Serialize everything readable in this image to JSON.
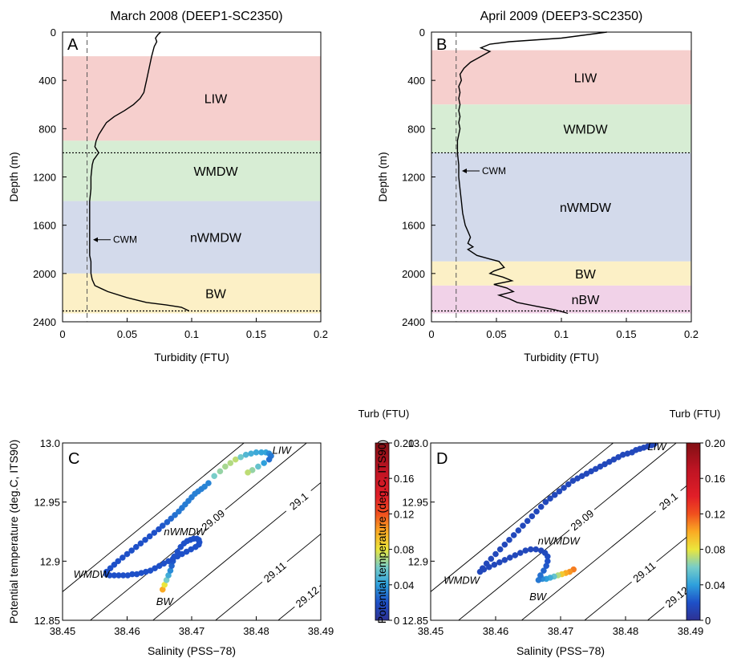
{
  "chart_data": [
    {
      "id": "A",
      "type": "line",
      "panel_label": "A",
      "title": "March 2008  (DEEP1-SC2350)",
      "xlabel": "Turbidity (FTU)",
      "ylabel": "Depth (m)",
      "xlim": [
        0,
        0.2
      ],
      "ylim": [
        2400,
        0
      ],
      "y_inverted": true,
      "xticks": [
        "0",
        "0.05",
        "0.1",
        "0.15",
        "0.2"
      ],
      "yticks": [
        "0",
        "400",
        "800",
        "1200",
        "1600",
        "2000",
        "2400"
      ],
      "bands": [
        {
          "label": "LIW",
          "from": 200,
          "to": 900,
          "color": "#f6cfcd"
        },
        {
          "label": "WMDW",
          "from": 900,
          "to": 1400,
          "color": "#d7edd4"
        },
        {
          "label": "nWMDW",
          "from": 1400,
          "to": 2000,
          "color": "#d3daeb"
        },
        {
          "label": "BW",
          "from": 2000,
          "to": 2330,
          "color": "#fcf0c6"
        }
      ],
      "hlines": [
        1000,
        2310
      ],
      "vline": 0.019,
      "annotation": "CWM",
      "annotation_depth": 1720,
      "series": [
        {
          "x": [
            0.076,
            0.074,
            0.072,
            0.073,
            0.071,
            0.07,
            0.069,
            0.068,
            0.067,
            0.066,
            0.065,
            0.064,
            0.063,
            0.06,
            0.055,
            0.048,
            0.04,
            0.034,
            0.031,
            0.028,
            0.026,
            0.025,
            0.028,
            0.026,
            0.024,
            0.023,
            0.022,
            0.022,
            0.021,
            0.021,
            0.021,
            0.021,
            0.021,
            0.021,
            0.021,
            0.021,
            0.021,
            0.021,
            0.022,
            0.022,
            0.022,
            0.023,
            0.025,
            0.035,
            0.05,
            0.065,
            0.08,
            0.092,
            0.098
          ],
          "y": [
            0,
            20,
            50,
            80,
            120,
            160,
            200,
            250,
            300,
            350,
            400,
            450,
            500,
            550,
            600,
            650,
            700,
            750,
            800,
            850,
            900,
            950,
            1000,
            1030,
            1060,
            1100,
            1200,
            1300,
            1400,
            1450,
            1500,
            1550,
            1600,
            1650,
            1700,
            1750,
            1800,
            1850,
            1900,
            1950,
            2000,
            2050,
            2100,
            2150,
            2200,
            2240,
            2260,
            2280,
            2310
          ]
        }
      ]
    },
    {
      "id": "B",
      "type": "line",
      "panel_label": "B",
      "title": "April 2009  (DEEP3-SC2350)",
      "xlabel": "Turbidity (FTU)",
      "ylabel": "Depth (m)",
      "xlim": [
        0,
        0.2
      ],
      "ylim": [
        2400,
        0
      ],
      "y_inverted": true,
      "xticks": [
        "0",
        "0.05",
        "0.1",
        "0.15",
        "0.2"
      ],
      "yticks": [
        "0",
        "400",
        "800",
        "1200",
        "1600",
        "2000",
        "2400"
      ],
      "bands": [
        {
          "label": "LIW",
          "from": 150,
          "to": 600,
          "color": "#f6cfcd"
        },
        {
          "label": "WMDW",
          "from": 600,
          "to": 1000,
          "color": "#d7edd4"
        },
        {
          "label": "nWMDW",
          "from": 1000,
          "to": 1900,
          "color": "#d3daeb"
        },
        {
          "label": "BW",
          "from": 1900,
          "to": 2100,
          "color": "#fcf0c6"
        },
        {
          "label": "nBW",
          "from": 2100,
          "to": 2330,
          "color": "#f1d2e8"
        }
      ],
      "hlines": [
        1000,
        2310
      ],
      "vline": 0.019,
      "annotation": "CWM",
      "annotation_depth": 1150,
      "series": [
        {
          "x": [
            0.135,
            0.1,
            0.06,
            0.045,
            0.038,
            0.045,
            0.04,
            0.035,
            0.03,
            0.025,
            0.022,
            0.023,
            0.021,
            0.022,
            0.021,
            0.022,
            0.021,
            0.022,
            0.021,
            0.022,
            0.021,
            0.02,
            0.02,
            0.021,
            0.021,
            0.022,
            0.023,
            0.024,
            0.026,
            0.028,
            0.03,
            0.028,
            0.032,
            0.028,
            0.035,
            0.045,
            0.052,
            0.056,
            0.048,
            0.045,
            0.055,
            0.062,
            0.048,
            0.058,
            0.063,
            0.052,
            0.06,
            0.066,
            0.08,
            0.095,
            0.105
          ],
          "y": [
            0,
            50,
            80,
            100,
            130,
            160,
            190,
            220,
            250,
            300,
            350,
            400,
            450,
            500,
            550,
            600,
            650,
            700,
            750,
            800,
            850,
            900,
            1000,
            1100,
            1200,
            1300,
            1400,
            1500,
            1600,
            1650,
            1700,
            1750,
            1780,
            1800,
            1850,
            1880,
            1900,
            1950,
            1980,
            2000,
            2030,
            2060,
            2090,
            2120,
            2150,
            2180,
            2210,
            2240,
            2270,
            2300,
            2330
          ]
        }
      ]
    },
    {
      "id": "C",
      "type": "scatter",
      "panel_label": "C",
      "xlabel": "Salinity (PSS−78)",
      "ylabel": "Potential temperature (deg.C, ITS90)",
      "xlim": [
        38.45,
        38.49
      ],
      "ylim": [
        12.85,
        13.0
      ],
      "xticks": [
        "38.45",
        "38.46",
        "38.47",
        "38.48",
        "38.49"
      ],
      "yticks": [
        "12.85",
        "12.9",
        "12.95",
        "13.0"
      ],
      "isopycnals": [
        {
          "label": "29.09",
          "value": 29.09
        },
        {
          "label": "29.1",
          "value": 29.1
        },
        {
          "label": "29.11",
          "value": 29.11
        },
        {
          "label": "29.12",
          "value": 29.12
        }
      ],
      "water_mass_labels": [
        "LIW",
        "nWMDW",
        "WMDW",
        "BW"
      ],
      "colorbar": {
        "title": "Turb (FTU)",
        "min": 0,
        "max": 0.2,
        "ticks": [
          "0",
          "0.04",
          "0.08",
          "0.12",
          "0.16",
          "0.20"
        ]
      },
      "points": {
        "s": [
          38.4655,
          38.4658,
          38.4661,
          38.4664,
          38.4667,
          38.4669,
          38.4671,
          38.4673,
          38.4678,
          38.4683,
          38.4688,
          38.4693,
          38.4698,
          38.4703,
          38.4708,
          38.4711,
          38.4712,
          38.4711,
          38.4706,
          38.4699,
          38.4692,
          38.4685,
          38.4678,
          38.4671,
          38.4664,
          38.4657,
          38.465,
          38.4643,
          38.4636,
          38.4629,
          38.4622,
          38.4615,
          38.4608,
          38.4601,
          38.4594,
          38.4587,
          38.458,
          38.4573,
          38.4568,
          38.4568,
          38.4574,
          38.458,
          38.4586,
          38.4593,
          38.46,
          38.4607,
          38.4614,
          38.4621,
          38.4628,
          38.4635,
          38.4642,
          38.4649,
          38.4655,
          38.4662,
          38.4668,
          38.4674,
          38.468,
          38.4685,
          38.469,
          38.4695,
          38.47,
          38.4705,
          38.471,
          38.4715,
          38.472,
          38.4726,
          38.4735,
          38.4744,
          38.4752,
          38.476,
          38.4768,
          38.4776,
          38.4784,
          38.4792,
          38.48,
          38.4808,
          38.4815,
          38.482,
          38.4823,
          38.482,
          38.4812,
          38.4803,
          38.4794,
          38.4787
        ],
        "t": [
          12.876,
          12.88,
          12.884,
          12.888,
          12.892,
          12.896,
          12.9,
          12.904,
          12.908,
          12.912,
          12.915,
          12.917,
          12.918,
          12.919,
          12.919,
          12.918,
          12.916,
          12.914,
          12.912,
          12.91,
          12.908,
          12.906,
          12.904,
          12.902,
          12.9,
          12.898,
          12.896,
          12.894,
          12.892,
          12.891,
          12.89,
          12.889,
          12.889,
          12.888,
          12.888,
          12.888,
          12.888,
          12.888,
          12.889,
          12.891,
          12.894,
          12.897,
          12.9,
          12.903,
          12.906,
          12.909,
          12.912,
          12.915,
          12.918,
          12.921,
          12.924,
          12.927,
          12.93,
          12.933,
          12.936,
          12.939,
          12.942,
          12.945,
          12.948,
          12.951,
          12.954,
          12.957,
          12.959,
          12.961,
          12.963,
          12.966,
          12.972,
          12.976,
          12.98,
          12.983,
          12.986,
          12.988,
          12.99,
          12.991,
          12.992,
          12.992,
          12.992,
          12.991,
          12.989,
          12.986,
          12.983,
          12.98,
          12.977,
          12.975
        ],
        "turb": [
          0.1,
          0.08,
          0.06,
          0.045,
          0.035,
          0.025,
          0.022,
          0.021,
          0.02,
          0.02,
          0.02,
          0.02,
          0.02,
          0.02,
          0.02,
          0.02,
          0.02,
          0.02,
          0.02,
          0.02,
          0.02,
          0.02,
          0.02,
          0.02,
          0.02,
          0.02,
          0.02,
          0.02,
          0.02,
          0.02,
          0.02,
          0.02,
          0.02,
          0.02,
          0.02,
          0.02,
          0.02,
          0.02,
          0.02,
          0.02,
          0.02,
          0.02,
          0.02,
          0.02,
          0.02,
          0.02,
          0.02,
          0.02,
          0.02,
          0.02,
          0.02,
          0.02,
          0.022,
          0.024,
          0.026,
          0.028,
          0.03,
          0.03,
          0.031,
          0.031,
          0.031,
          0.032,
          0.032,
          0.032,
          0.033,
          0.033,
          0.06,
          0.065,
          0.068,
          0.07,
          0.072,
          0.058,
          0.05,
          0.046,
          0.044,
          0.042,
          0.042,
          0.035,
          0.03,
          0.028,
          0.04,
          0.055,
          0.065,
          0.072
        ]
      }
    },
    {
      "id": "D",
      "type": "scatter",
      "panel_label": "D",
      "xlabel": "Salinity (PSS−78)",
      "ylabel": "Potential temperature (deg.C, ITS90)",
      "xlim": [
        38.45,
        38.49
      ],
      "ylim": [
        12.85,
        13.0
      ],
      "xticks": [
        "38.45",
        "38.46",
        "38.47",
        "38.48",
        "38.49"
      ],
      "yticks": [
        "12.85",
        "12.9",
        "12.95",
        "13.0"
      ],
      "isopycnals": [
        {
          "label": "29.09",
          "value": 29.09
        },
        {
          "label": "29.1",
          "value": 29.1
        },
        {
          "label": "29.11",
          "value": 29.11
        },
        {
          "label": "29.12",
          "value": 29.12
        }
      ],
      "water_mass_labels": [
        "LIW",
        "nWMDW",
        "WMDW",
        "BW"
      ],
      "colorbar": {
        "title": "Turb (FTU)",
        "min": 0,
        "max": 0.2,
        "ticks": [
          "0",
          "0.04",
          "0.08",
          "0.12",
          "0.16",
          "0.20"
        ]
      },
      "points": {
        "s": [
          38.472,
          38.4714,
          38.4708,
          38.4702,
          38.4696,
          38.469,
          38.4684,
          38.4678,
          38.4672,
          38.4666,
          38.4669,
          38.4674,
          38.4678,
          38.468,
          38.468,
          38.4676,
          38.467,
          38.4662,
          38.4654,
          38.4646,
          38.4638,
          38.463,
          38.4622,
          38.4614,
          38.4606,
          38.4598,
          38.459,
          38.4582,
          38.4576,
          38.458,
          38.4586,
          38.4593,
          38.46,
          38.4607,
          38.4614,
          38.4621,
          38.4628,
          38.4635,
          38.4642,
          38.4649,
          38.4656,
          38.4663,
          38.467,
          38.4677,
          38.4684,
          38.4691,
          38.4698,
          38.4705,
          38.4712,
          38.4719,
          38.4726,
          38.4733,
          38.474,
          38.4747,
          38.4754,
          38.4761,
          38.4768,
          38.4775,
          38.4782,
          38.4789,
          38.4796,
          38.4803,
          38.481,
          38.4816,
          38.4822,
          38.4828,
          38.4834,
          38.484,
          38.4844
        ],
        "t": [
          12.893,
          12.891,
          12.89,
          12.889,
          12.888,
          12.887,
          12.886,
          12.885,
          12.885,
          12.884,
          12.888,
          12.892,
          12.896,
          12.9,
          12.904,
          12.907,
          12.909,
          12.91,
          12.91,
          12.909,
          12.907,
          12.905,
          12.903,
          12.901,
          12.899,
          12.897,
          12.895,
          12.893,
          12.891,
          12.894,
          12.898,
          12.902,
          12.906,
          12.91,
          12.914,
          12.918,
          12.922,
          12.926,
          12.93,
          12.934,
          12.938,
          12.942,
          12.946,
          12.95,
          12.953,
          12.956,
          12.959,
          12.962,
          12.965,
          12.968,
          12.97,
          12.972,
          12.974,
          12.976,
          12.978,
          12.98,
          12.982,
          12.984,
          12.986,
          12.988,
          12.99,
          12.991,
          12.992,
          12.994,
          12.995,
          12.996,
          12.997,
          12.998,
          12.999
        ],
        "turb": [
          0.11,
          0.105,
          0.1,
          0.09,
          0.07,
          0.055,
          0.045,
          0.04,
          0.035,
          0.03,
          0.028,
          0.025,
          0.022,
          0.02,
          0.018,
          0.016,
          0.015,
          0.015,
          0.015,
          0.015,
          0.015,
          0.015,
          0.015,
          0.015,
          0.015,
          0.015,
          0.015,
          0.015,
          0.015,
          0.015,
          0.015,
          0.015,
          0.015,
          0.015,
          0.015,
          0.015,
          0.015,
          0.015,
          0.015,
          0.015,
          0.015,
          0.015,
          0.015,
          0.015,
          0.015,
          0.015,
          0.015,
          0.015,
          0.015,
          0.015,
          0.015,
          0.015,
          0.015,
          0.015,
          0.015,
          0.015,
          0.015,
          0.015,
          0.015,
          0.015,
          0.015,
          0.015,
          0.015,
          0.015,
          0.015,
          0.015,
          0.015,
          0.015,
          0.015
        ]
      }
    }
  ]
}
